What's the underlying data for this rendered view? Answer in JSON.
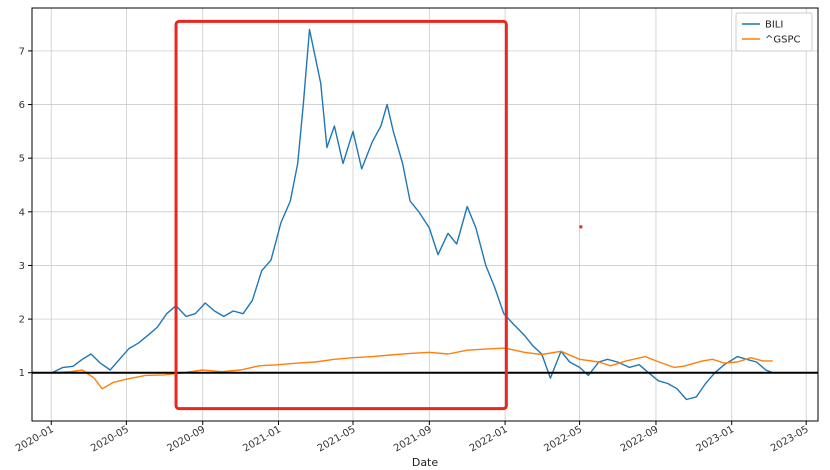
{
  "chart_data": {
    "type": "line",
    "xlabel": "Date",
    "ylabel": "",
    "xlim": [
      "2019-12-01",
      "2023-05-20"
    ],
    "ylim": [
      0.1,
      7.8
    ],
    "x_ticks": [
      "2020-01-01",
      "2020-05-01",
      "2020-09-01",
      "2021-01-01",
      "2021-05-01",
      "2021-09-01",
      "2022-01-01",
      "2022-05-01",
      "2022-09-01",
      "2023-01-01",
      "2023-05-01"
    ],
    "x_tick_labels": [
      "2020-01",
      "2020-05",
      "2020-09",
      "2021-01",
      "2021-05",
      "2021-09",
      "2022-01",
      "2022-05",
      "2022-09",
      "2023-01",
      "2023-05"
    ],
    "y_ticks": [
      1,
      2,
      3,
      4,
      5,
      6,
      7
    ],
    "y_tick_labels": [
      "1",
      "2",
      "3",
      "4",
      "5",
      "6",
      "7"
    ],
    "grid": true,
    "legend_position": "top-right",
    "reference_line": {
      "y": 1,
      "color": "#000000"
    },
    "highlight_box": {
      "x0": "2020-07-20",
      "x1": "2022-01-03",
      "y0": 0.33,
      "y1": 7.55,
      "color": "#e8281e"
    },
    "annotation_marker": {
      "x": "2022-05-03",
      "y": 3.72,
      "color": "#e8281e"
    },
    "series": [
      {
        "name": "BILI",
        "color": "#1f77b4",
        "points": [
          [
            "2020-01-02",
            1.0
          ],
          [
            "2020-01-20",
            1.1
          ],
          [
            "2020-02-05",
            1.12
          ],
          [
            "2020-02-20",
            1.25
          ],
          [
            "2020-03-05",
            1.35
          ],
          [
            "2020-03-20",
            1.18
          ],
          [
            "2020-04-05",
            1.05
          ],
          [
            "2020-04-20",
            1.25
          ],
          [
            "2020-05-05",
            1.45
          ],
          [
            "2020-05-20",
            1.55
          ],
          [
            "2020-06-05",
            1.7
          ],
          [
            "2020-06-20",
            1.85
          ],
          [
            "2020-07-05",
            2.1
          ],
          [
            "2020-07-20",
            2.25
          ],
          [
            "2020-08-05",
            2.05
          ],
          [
            "2020-08-20",
            2.1
          ],
          [
            "2020-09-05",
            2.3
          ],
          [
            "2020-09-20",
            2.15
          ],
          [
            "2020-10-05",
            2.05
          ],
          [
            "2020-10-20",
            2.15
          ],
          [
            "2020-11-05",
            2.1
          ],
          [
            "2020-11-20",
            2.35
          ],
          [
            "2020-12-05",
            2.9
          ],
          [
            "2020-12-20",
            3.1
          ],
          [
            "2021-01-05",
            3.8
          ],
          [
            "2021-01-20",
            4.2
          ],
          [
            "2021-02-01",
            4.9
          ],
          [
            "2021-02-10",
            6.0
          ],
          [
            "2021-02-20",
            7.4
          ],
          [
            "2021-03-01",
            6.9
          ],
          [
            "2021-03-10",
            6.4
          ],
          [
            "2021-03-20",
            5.2
          ],
          [
            "2021-04-01",
            5.6
          ],
          [
            "2021-04-15",
            4.9
          ],
          [
            "2021-05-01",
            5.5
          ],
          [
            "2021-05-15",
            4.8
          ],
          [
            "2021-06-01",
            5.3
          ],
          [
            "2021-06-15",
            5.6
          ],
          [
            "2021-06-25",
            6.0
          ],
          [
            "2021-07-05",
            5.5
          ],
          [
            "2021-07-20",
            4.9
          ],
          [
            "2021-08-01",
            4.2
          ],
          [
            "2021-08-15",
            4.0
          ],
          [
            "2021-09-01",
            3.7
          ],
          [
            "2021-09-15",
            3.2
          ],
          [
            "2021-10-01",
            3.6
          ],
          [
            "2021-10-15",
            3.4
          ],
          [
            "2021-11-01",
            4.1
          ],
          [
            "2021-11-15",
            3.7
          ],
          [
            "2021-12-01",
            3.0
          ],
          [
            "2021-12-15",
            2.6
          ],
          [
            "2021-12-30",
            2.1
          ],
          [
            "2022-01-15",
            1.9
          ],
          [
            "2022-02-01",
            1.7
          ],
          [
            "2022-02-15",
            1.5
          ],
          [
            "2022-03-01",
            1.35
          ],
          [
            "2022-03-15",
            0.9
          ],
          [
            "2022-04-01",
            1.4
          ],
          [
            "2022-04-15",
            1.2
          ],
          [
            "2022-05-01",
            1.1
          ],
          [
            "2022-05-15",
            0.95
          ],
          [
            "2022-06-01",
            1.2
          ],
          [
            "2022-06-15",
            1.25
          ],
          [
            "2022-07-01",
            1.2
          ],
          [
            "2022-07-20",
            1.1
          ],
          [
            "2022-08-05",
            1.15
          ],
          [
            "2022-08-20",
            1.0
          ],
          [
            "2022-09-05",
            0.85
          ],
          [
            "2022-09-20",
            0.8
          ],
          [
            "2022-10-05",
            0.7
          ],
          [
            "2022-10-20",
            0.5
          ],
          [
            "2022-11-05",
            0.55
          ],
          [
            "2022-11-20",
            0.8
          ],
          [
            "2022-12-05",
            1.0
          ],
          [
            "2022-12-20",
            1.15
          ],
          [
            "2023-01-10",
            1.3
          ],
          [
            "2023-01-25",
            1.25
          ],
          [
            "2023-02-10",
            1.2
          ],
          [
            "2023-02-25",
            1.05
          ],
          [
            "2023-03-08",
            1.0
          ]
        ]
      },
      {
        "name": "^GSPC",
        "color": "#ff7f0e",
        "points": [
          [
            "2020-01-02",
            1.0
          ],
          [
            "2020-02-01",
            1.02
          ],
          [
            "2020-02-20",
            1.05
          ],
          [
            "2020-03-10",
            0.9
          ],
          [
            "2020-03-23",
            0.7
          ],
          [
            "2020-04-10",
            0.82
          ],
          [
            "2020-05-01",
            0.88
          ],
          [
            "2020-06-01",
            0.95
          ],
          [
            "2020-07-01",
            0.96
          ],
          [
            "2020-08-01",
            1.0
          ],
          [
            "2020-09-01",
            1.05
          ],
          [
            "2020-10-01",
            1.02
          ],
          [
            "2020-11-01",
            1.05
          ],
          [
            "2020-12-01",
            1.13
          ],
          [
            "2021-01-01",
            1.15
          ],
          [
            "2021-02-01",
            1.18
          ],
          [
            "2021-03-01",
            1.2
          ],
          [
            "2021-04-01",
            1.25
          ],
          [
            "2021-05-01",
            1.28
          ],
          [
            "2021-06-01",
            1.3
          ],
          [
            "2021-07-01",
            1.33
          ],
          [
            "2021-08-01",
            1.36
          ],
          [
            "2021-09-01",
            1.38
          ],
          [
            "2021-10-01",
            1.35
          ],
          [
            "2021-11-01",
            1.42
          ],
          [
            "2021-12-01",
            1.44
          ],
          [
            "2022-01-01",
            1.46
          ],
          [
            "2022-02-01",
            1.38
          ],
          [
            "2022-03-01",
            1.34
          ],
          [
            "2022-04-01",
            1.4
          ],
          [
            "2022-05-01",
            1.25
          ],
          [
            "2022-06-01",
            1.2
          ],
          [
            "2022-06-20",
            1.13
          ],
          [
            "2022-07-15",
            1.22
          ],
          [
            "2022-08-15",
            1.3
          ],
          [
            "2022-09-01",
            1.22
          ],
          [
            "2022-09-30",
            1.1
          ],
          [
            "2022-10-15",
            1.12
          ],
          [
            "2022-11-15",
            1.22
          ],
          [
            "2022-12-01",
            1.25
          ],
          [
            "2022-12-20",
            1.18
          ],
          [
            "2023-01-10",
            1.2
          ],
          [
            "2023-02-01",
            1.28
          ],
          [
            "2023-02-20",
            1.22
          ],
          [
            "2023-03-08",
            1.22
          ]
        ]
      }
    ]
  }
}
